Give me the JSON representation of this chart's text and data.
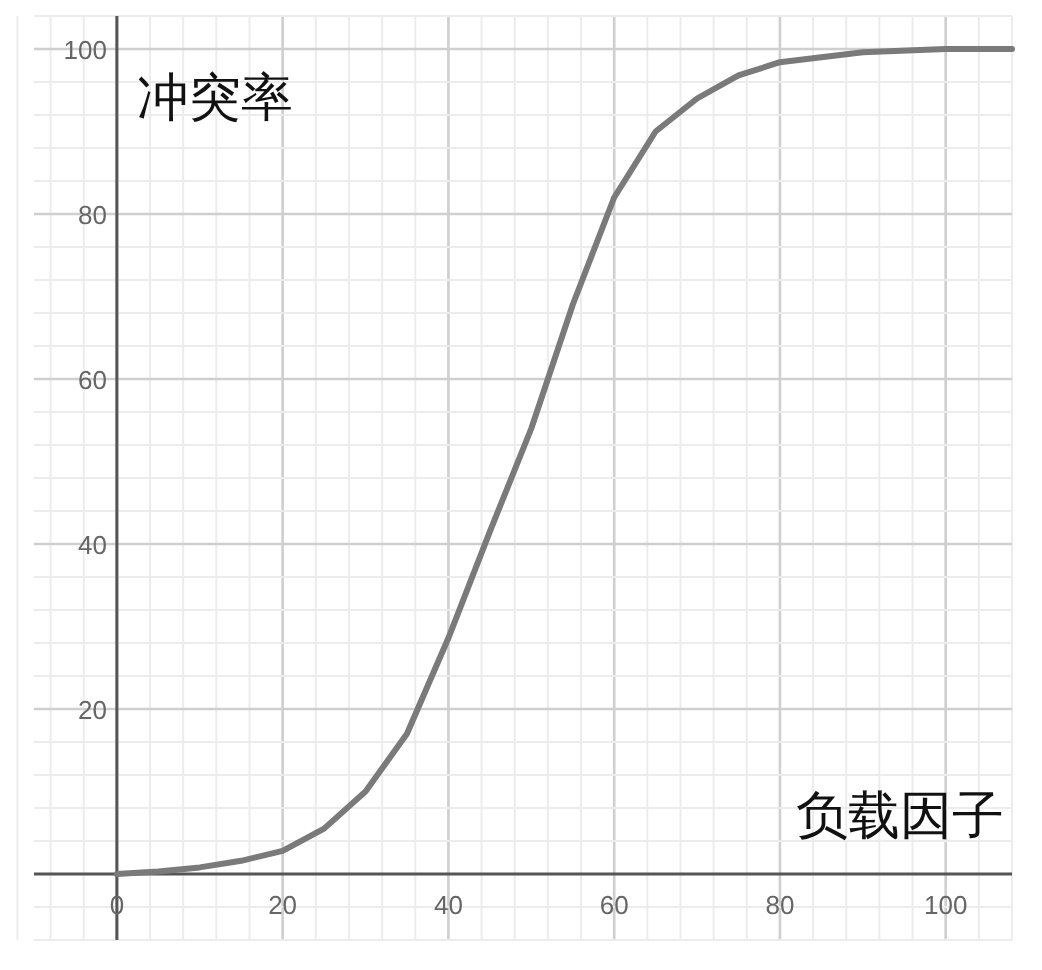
{
  "chart_data": {
    "type": "line",
    "xlabel": "负载因子",
    "ylabel": "冲突率",
    "series": [
      {
        "color": "#7a7a7a",
        "x": [
          0,
          5,
          10,
          15,
          20,
          25,
          30,
          35,
          40,
          45,
          50,
          55,
          60,
          65,
          70,
          75,
          80,
          90,
          100,
          108
        ],
        "values": [
          0,
          0.3,
          0.8,
          1.6,
          2.8,
          5.5,
          10,
          17,
          28.6,
          41.5,
          54,
          69,
          82,
          90,
          94,
          96.8,
          98.4,
          99.6,
          100,
          100
        ]
      }
    ],
    "xlim": [
      -10,
      108
    ],
    "ylim": [
      -8,
      104
    ],
    "xticks": [
      0,
      20,
      40,
      60,
      80,
      100
    ],
    "yticks": [
      20,
      40,
      60,
      80,
      100
    ],
    "grid": true,
    "marker": "none",
    "line_style": "solid"
  }
}
